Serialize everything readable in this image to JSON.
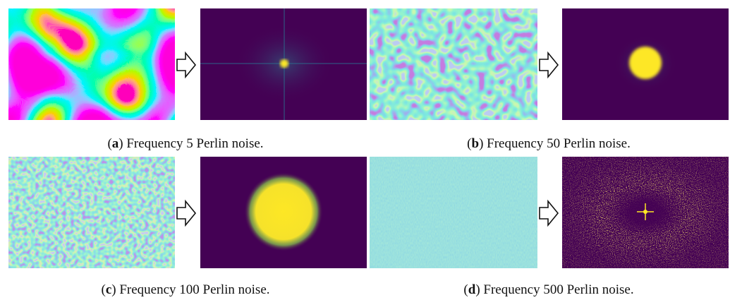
{
  "panels": [
    {
      "prefix": "(",
      "label": "a",
      "text": ") Frequency 5 Perlin noise."
    },
    {
      "prefix": "(",
      "label": "b",
      "text": ") Frequency 50 Perlin noise."
    },
    {
      "prefix": "(",
      "label": "c",
      "text": ") Frequency 100 Perlin noise."
    },
    {
      "prefix": "(",
      "label": "d",
      "text": ") Frequency 500 Perlin noise."
    }
  ]
}
